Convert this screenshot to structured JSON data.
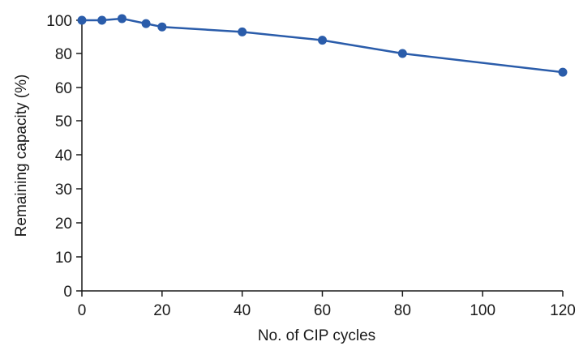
{
  "chart_data": {
    "type": "line",
    "title": "",
    "xlabel": "No. of CIP cycles",
    "ylabel": "Remaining capacity (%)",
    "xlim": [
      0,
      120
    ],
    "ylim": [
      0,
      100
    ],
    "xticks": [
      0,
      20,
      40,
      60,
      80,
      100,
      120
    ],
    "yticks": [
      0,
      10,
      20,
      30,
      40,
      50,
      60,
      80,
      100
    ],
    "grid": false,
    "legend": "none",
    "series": [
      {
        "color": "#2a5caa",
        "x": [
          0,
          5,
          10,
          16,
          20,
          40,
          60,
          80,
          120
        ],
        "y": [
          100,
          100,
          101,
          98,
          96,
          93,
          88,
          80,
          69
        ]
      }
    ]
  }
}
